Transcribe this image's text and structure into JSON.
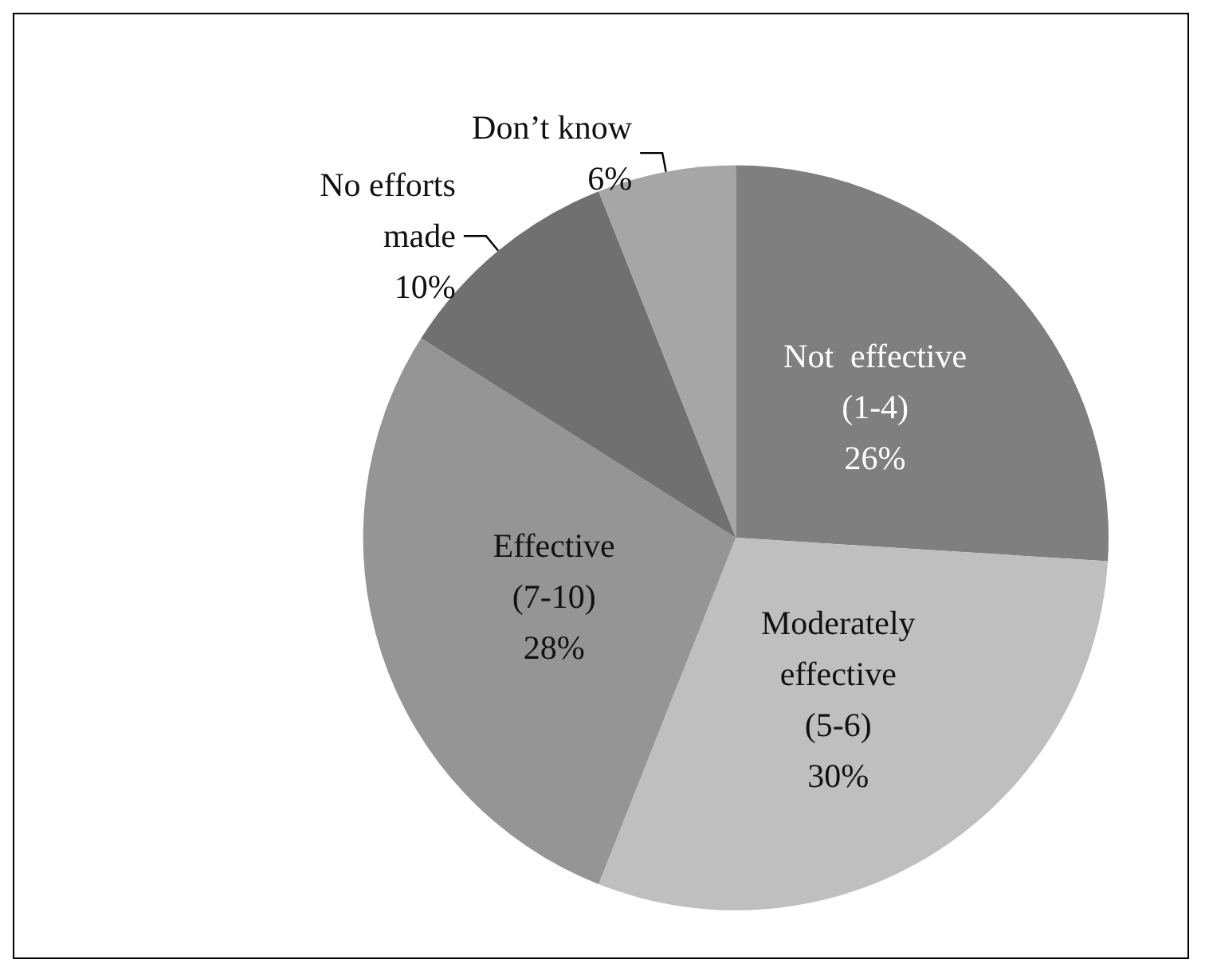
{
  "chart_data": {
    "type": "pie",
    "categories": [
      "Not  effective\n(1-4)",
      "Moderately\neffective\n(5-6)",
      "Effective\n(7-10)",
      "No efforts\nmade",
      "Don’t know"
    ],
    "values": [
      26,
      30,
      28,
      10,
      6
    ],
    "value_labels": [
      "26%",
      "30%",
      "28%",
      "10%",
      "6%"
    ],
    "colors": [
      "#7f7f7f",
      "#bfbfbf",
      "#959595",
      "#707070",
      "#a6a6a6"
    ],
    "legend": false
  }
}
